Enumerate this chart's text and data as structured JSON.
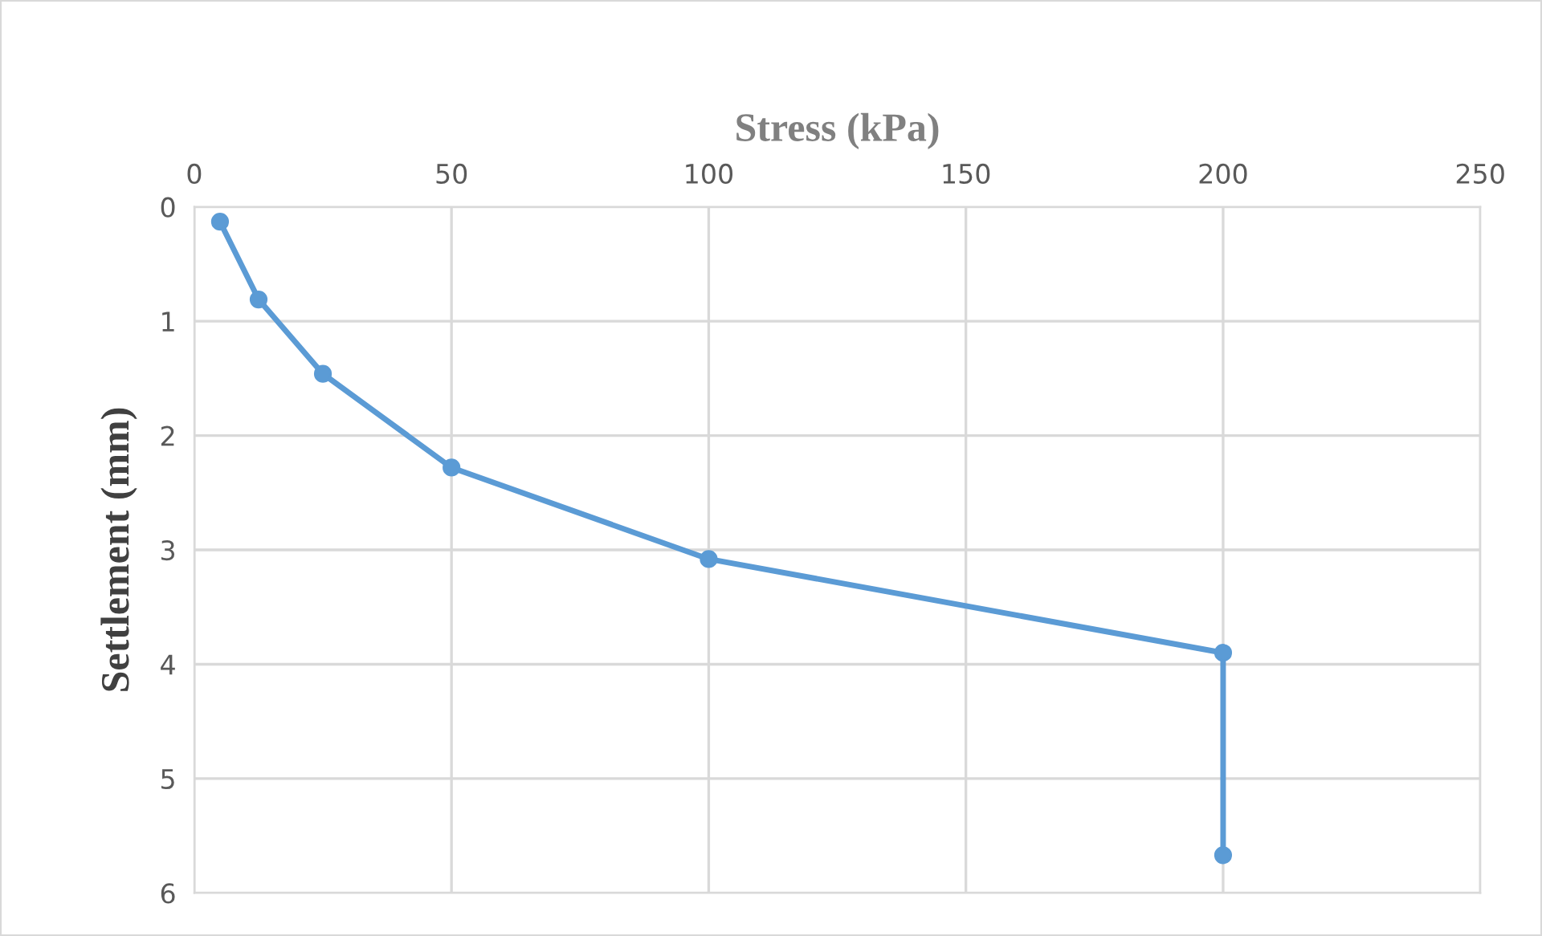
{
  "chart_data": {
    "type": "line",
    "xlabel": "Stress (kPa)",
    "ylabel": "Settlement (mm)",
    "xlim": [
      0,
      250
    ],
    "xticks": [
      0,
      50,
      100,
      150,
      200,
      250
    ],
    "ylim": [
      6,
      0
    ],
    "yticks": [
      0,
      1,
      2,
      3,
      4,
      5,
      6
    ],
    "grid": true,
    "marker": "circle",
    "line_style": "solid",
    "x": [
      5,
      12.5,
      25,
      50,
      100,
      200,
      200
    ],
    "series": [
      {
        "color": "#5b9bd5",
        "values": [
          0.13,
          0.81,
          1.46,
          2.28,
          3.08,
          3.9,
          5.67
        ]
      }
    ]
  }
}
